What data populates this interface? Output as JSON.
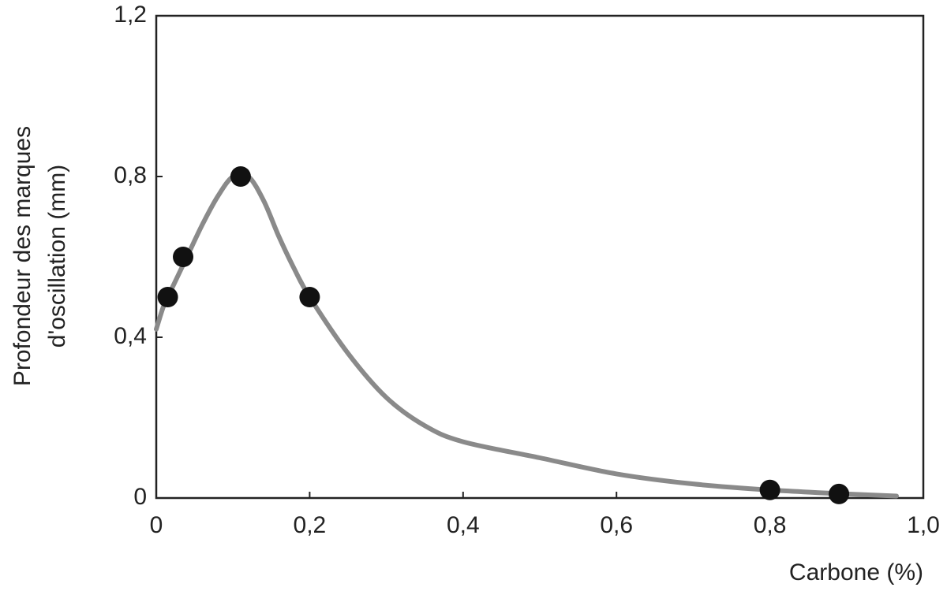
{
  "chart_data": {
    "type": "scatter",
    "xlabel": "Carbone (%)",
    "ylabel": [
      "Profondeur des marques",
      "d'oscillation (mm)"
    ],
    "xlim": [
      0,
      1
    ],
    "ylim": [
      0,
      1.2
    ],
    "xticks": [
      0,
      {
        "value": 0.2,
        "label": "0,2"
      },
      {
        "value": 0.4,
        "label": "0,4"
      },
      {
        "value": 0.6,
        "label": "0,6"
      },
      {
        "value": 0.8,
        "label": "0,8"
      },
      {
        "value": 1,
        "label": "1,0"
      }
    ],
    "yticks": [
      0,
      {
        "value": 0.4,
        "label": "0,4"
      },
      {
        "value": 0.8,
        "label": "0,8"
      },
      {
        "value": 1.2,
        "label": "1,2"
      }
    ],
    "points": {
      "color": "#111111",
      "x": [
        0.015,
        0.035,
        0.11,
        0.2,
        0.8,
        0.89
      ],
      "y": [
        0.5,
        0.6,
        0.8,
        0.5,
        0.02,
        0.01
      ]
    },
    "curve": {
      "color": "#8a8a8a",
      "x": [
        0,
        0.01,
        0.02,
        0.04,
        0.06,
        0.08,
        0.1,
        0.12,
        0.14,
        0.16,
        0.18,
        0.2,
        0.25,
        0.3,
        0.35,
        0.4,
        0.5,
        0.6,
        0.7,
        0.8,
        0.9,
        0.965
      ],
      "y": [
        0.42,
        0.48,
        0.52,
        0.6,
        0.68,
        0.75,
        0.8,
        0.8,
        0.74,
        0.65,
        0.57,
        0.5,
        0.36,
        0.25,
        0.18,
        0.14,
        0.1,
        0.06,
        0.035,
        0.02,
        0.01,
        0.005
      ]
    }
  }
}
